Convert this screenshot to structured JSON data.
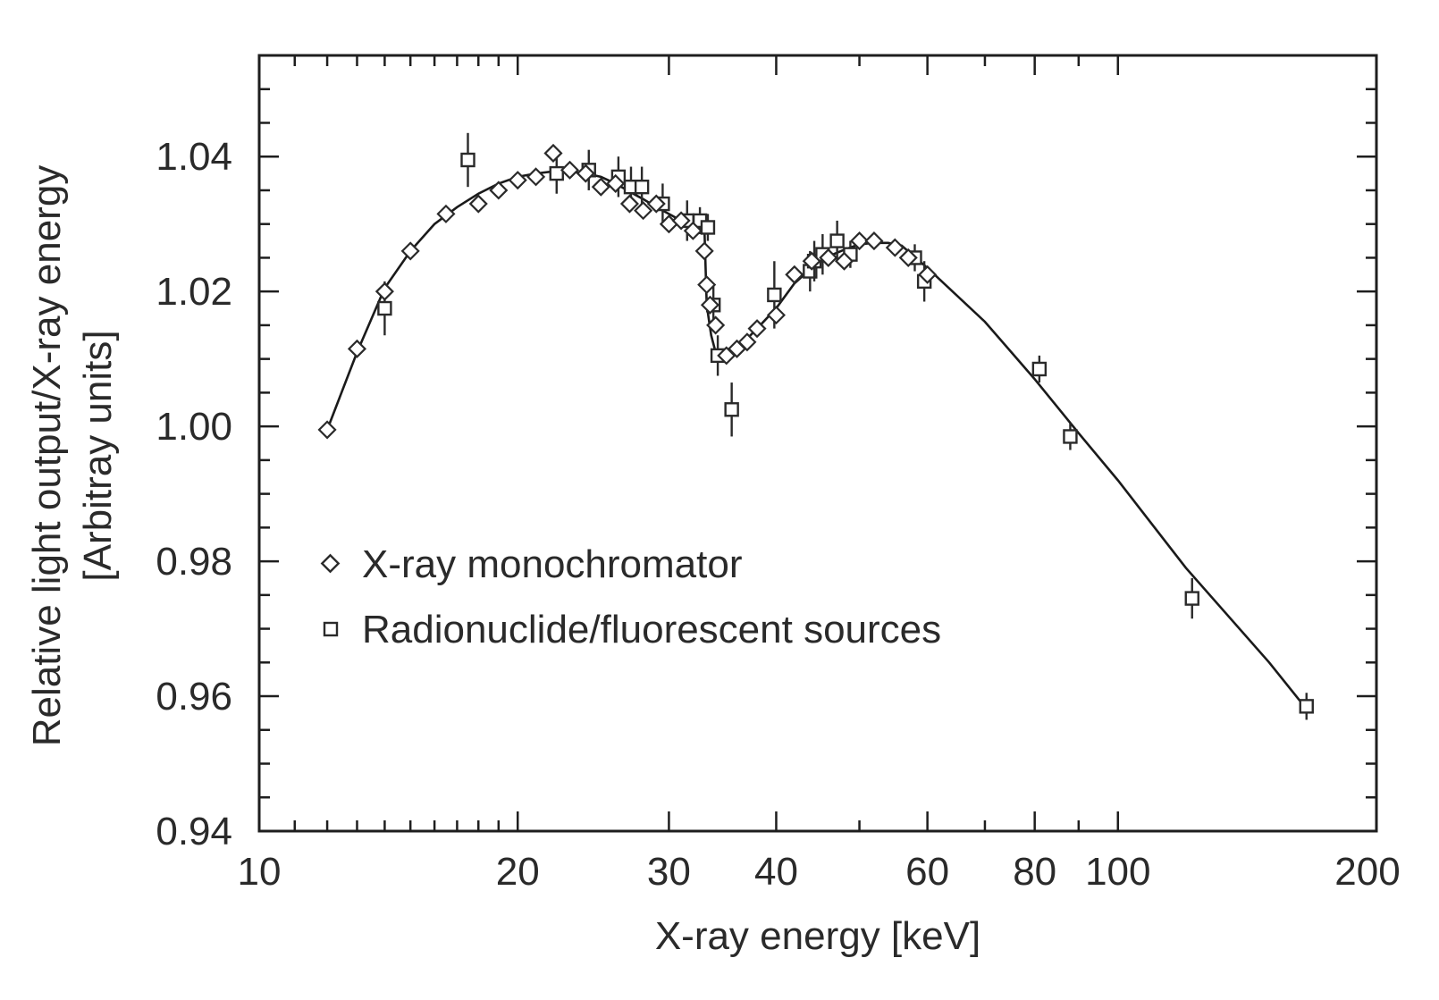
{
  "chart_data": {
    "type": "scatter",
    "title": "",
    "xlabel": "X-ray energy [keV]",
    "ylabel_lines": [
      "Relative light output/X-ray energy",
      "[Arbitray units]"
    ],
    "x_scale": "log",
    "xlim": [
      10,
      200
    ],
    "ylim": [
      0.94,
      1.055
    ],
    "x_ticks": [
      10,
      20,
      30,
      40,
      60,
      80,
      100,
      200
    ],
    "x_tick_labels": [
      "10",
      "20",
      "30",
      "40",
      "60",
      "80",
      "100",
      "200"
    ],
    "y_ticks": [
      0.94,
      0.96,
      0.98,
      1.0,
      1.02,
      1.04
    ],
    "y_tick_labels": [
      "0.94",
      "0.96",
      "0.98",
      "1.00",
      "1.02",
      "1.04"
    ],
    "grid": false,
    "legend_position": "center-left",
    "series": [
      {
        "name": "X-ray monochromator",
        "marker": "diamond",
        "x": [
          12,
          13,
          14,
          15,
          16.5,
          18,
          19,
          20,
          21,
          22,
          23,
          24,
          25,
          26,
          27,
          28,
          29,
          30,
          31,
          32,
          33,
          33.2,
          33.5,
          34,
          35,
          36,
          37,
          38,
          40,
          42,
          44,
          46,
          48,
          50,
          52,
          55,
          57,
          60
        ],
        "y": [
          0.9995,
          1.0115,
          1.02,
          1.026,
          1.0315,
          1.033,
          1.035,
          1.0365,
          1.037,
          1.0405,
          1.038,
          1.0375,
          1.0355,
          1.036,
          1.033,
          1.032,
          1.033,
          1.03,
          1.0305,
          1.029,
          1.026,
          1.021,
          1.018,
          1.015,
          1.0105,
          1.0115,
          1.0125,
          1.0145,
          1.0165,
          1.0225,
          1.0245,
          1.025,
          1.0245,
          1.0275,
          1.0275,
          1.0265,
          1.025,
          1.0225
        ]
      },
      {
        "name": "Radionuclide/fluorescent sources",
        "marker": "square",
        "x": [
          17.5,
          14.0,
          22.2,
          24.2,
          26.2,
          27.1,
          27.9,
          29.5,
          31.5,
          32.6,
          33.3,
          33.8,
          34.2,
          35.5,
          39.8,
          43.8,
          44.3,
          45.3,
          47.1,
          48.8,
          58.0,
          59.5,
          81.0,
          88.0,
          122.0,
          165.8
        ],
        "y": [
          1.0395,
          1.0175,
          1.0375,
          1.038,
          1.037,
          1.0355,
          1.0355,
          1.033,
          1.0305,
          1.0305,
          1.0295,
          1.018,
          1.0105,
          1.0025,
          1.0195,
          1.023,
          1.0245,
          1.0255,
          1.0275,
          1.0255,
          1.025,
          1.0215,
          1.0085,
          0.9985,
          0.9745,
          0.9585
        ],
        "y_err": [
          0.004,
          0.004,
          0.003,
          0.003,
          0.003,
          0.003,
          0.003,
          0.003,
          0.003,
          0.002,
          0.002,
          0.003,
          0.003,
          0.004,
          0.005,
          0.003,
          0.003,
          0.003,
          0.003,
          0.002,
          0.002,
          0.003,
          0.002,
          0.002,
          0.003,
          0.002
        ]
      },
      {
        "name": "",
        "type": "line",
        "x": [
          12,
          13,
          14,
          15,
          16,
          17,
          18,
          19,
          20,
          21,
          22,
          23,
          24,
          25,
          26,
          27,
          28,
          29,
          30,
          31,
          32,
          33,
          33.2,
          33.6,
          34,
          34.5,
          35,
          36,
          37,
          38,
          40,
          42,
          44,
          46,
          48,
          50,
          52,
          54,
          56,
          60,
          70,
          80,
          90,
          100,
          120,
          150,
          166
        ],
        "y": [
          0.9995,
          1.011,
          1.0205,
          1.026,
          1.03,
          1.0325,
          1.0345,
          1.036,
          1.037,
          1.0375,
          1.0378,
          1.0378,
          1.0375,
          1.037,
          1.036,
          1.0348,
          1.0337,
          1.0325,
          1.0315,
          1.0305,
          1.0298,
          1.029,
          1.018,
          1.0135,
          1.011,
          1.0102,
          1.01,
          1.0115,
          1.013,
          1.0145,
          1.0175,
          1.0212,
          1.0235,
          1.0252,
          1.0262,
          1.027,
          1.0272,
          1.0272,
          1.0268,
          1.0235,
          1.0155,
          1.007,
          0.999,
          0.992,
          0.979,
          0.965,
          0.958
        ]
      }
    ]
  }
}
